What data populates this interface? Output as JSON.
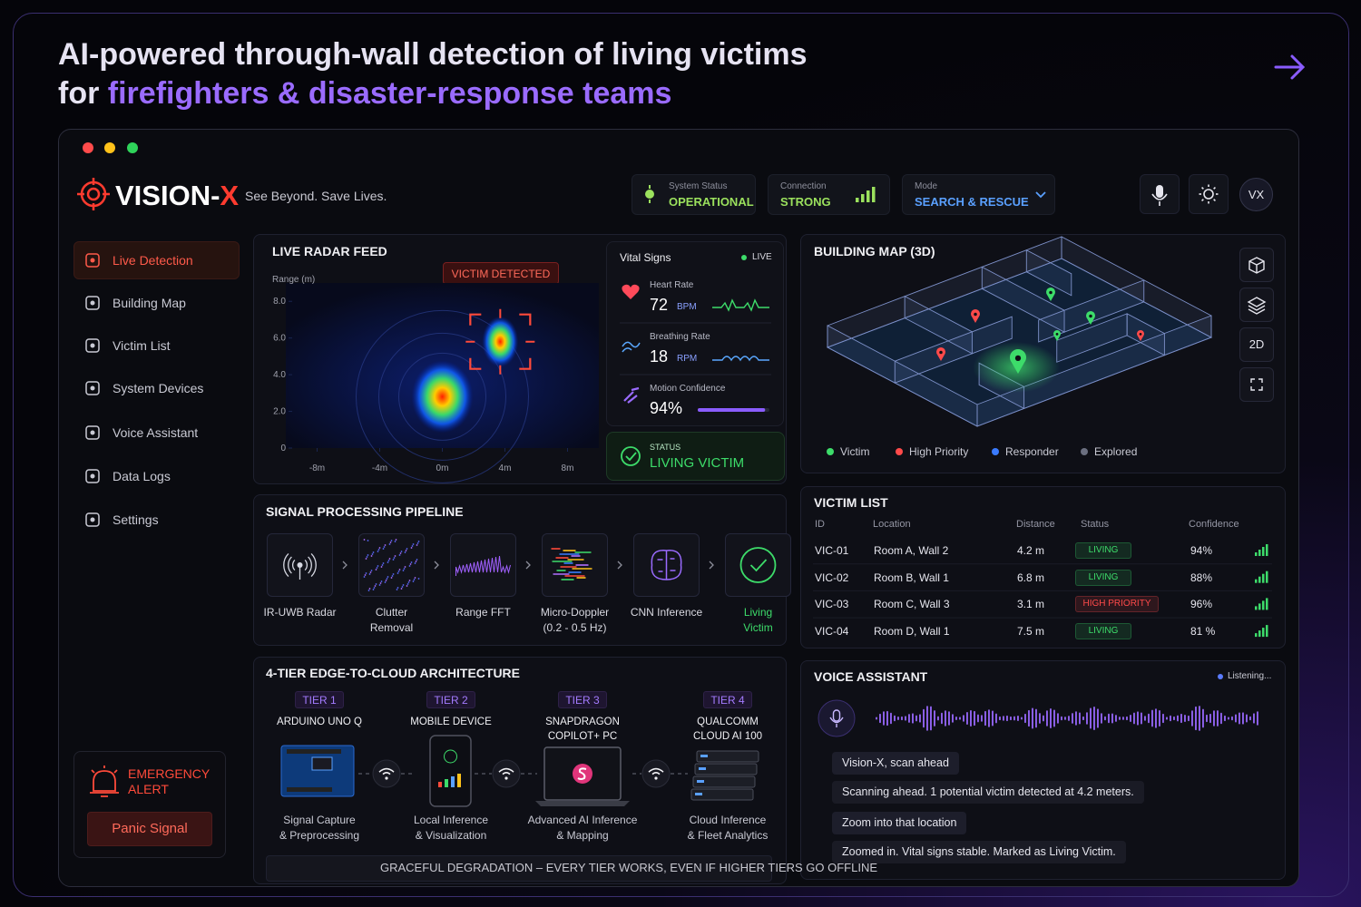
{
  "headline": {
    "line1": "AI-powered through-wall detection of living victims",
    "line2_lead": "for",
    "line2_highlight": "firefighters & disaster-response teams"
  },
  "brand": {
    "name": "VISION-",
    "name_accent": "X",
    "tagline": "See Beyond. Save Lives."
  },
  "status_bar": {
    "system_status": {
      "label": "System Status",
      "value": "OPERATIONAL"
    },
    "connection": {
      "label": "Connection",
      "value": "STRONG"
    },
    "mode": {
      "label": "Mode",
      "value": "SEARCH & RESCUE"
    },
    "avatar": "VX"
  },
  "sidebar": {
    "nav": [
      "Live Detection",
      "Building Map",
      "Victim List",
      "System Devices",
      "Voice Assistant",
      "Data Logs",
      "Settings"
    ],
    "active": 0,
    "emergency": {
      "title": "EMERGENCY ALERT",
      "button": "Panic Signal"
    }
  },
  "radar": {
    "title": "LIVE RADAR FEED",
    "y_label": "Range (m)",
    "xlim": [
      -10,
      10
    ],
    "ylim": [
      0,
      9
    ],
    "xticks": [
      {
        "value": -8,
        "label": "-8m"
      },
      {
        "value": -4,
        "label": "-4m"
      },
      {
        "value": 0,
        "label": "0m"
      },
      {
        "value": 4,
        "label": "4m"
      },
      {
        "value": 8,
        "label": "8m"
      }
    ],
    "yticks": [
      0,
      {
        "value": 2,
        "label": "2.0"
      },
      {
        "value": 4,
        "label": "4.0"
      },
      {
        "value": 6,
        "label": "6.0"
      },
      {
        "value": 8,
        "label": "8.0"
      }
    ],
    "badge": "VICTIM DETECTED",
    "detections": [
      {
        "x": 0,
        "y": 2.8
      },
      {
        "x": 3.7,
        "y": 5.8
      }
    ]
  },
  "vitals": {
    "title": "Vital Signs",
    "live": "LIVE",
    "heart_rate": {
      "label": "Heart Rate",
      "value": 72,
      "unit": "BPM"
    },
    "breathing_rate": {
      "label": "Breathing Rate",
      "value": 18,
      "unit": "RPM"
    },
    "motion_confidence": {
      "label": "Motion Confidence",
      "value": 94,
      "value_label": "94%"
    },
    "status": {
      "label": "STATUS",
      "value": "LIVING VICTIM"
    }
  },
  "building_map": {
    "title": "BUILDING MAP (3D)",
    "view_toggle": "2D",
    "legend": [
      {
        "label": "Victim",
        "color": "#3ddc6a"
      },
      {
        "label": "High Priority",
        "color": "#ff4a4a"
      },
      {
        "label": "Responder",
        "color": "#3a7bff"
      },
      {
        "label": "Explored",
        "color": "#6b6f80"
      }
    ]
  },
  "victim_list": {
    "title": "VICTIM LIST",
    "columns": [
      "ID",
      "Location",
      "Distance",
      "Status",
      "Confidence"
    ],
    "rows": [
      {
        "id": "VIC-01",
        "location": "Room A, Wall 2",
        "distance": "4.2 m",
        "status": "LIVING",
        "confidence": "94%",
        "status_color": "#3ddc6a"
      },
      {
        "id": "VIC-02",
        "location": "Room B, Wall 1",
        "distance": "6.8 m",
        "status": "LIVING",
        "confidence": "88%",
        "status_color": "#3ddc6a"
      },
      {
        "id": "VIC-03",
        "location": "Room C, Wall 3",
        "distance": "3.1 m",
        "status": "HIGH PRIORITY",
        "confidence": "96%",
        "status_color": "#ff4a4a"
      },
      {
        "id": "VIC-04",
        "location": "Room D, Wall 1",
        "distance": "7.5 m",
        "status": "LIVING",
        "confidence": "81 %",
        "status_color": "#3ddc6a"
      }
    ]
  },
  "pipeline": {
    "title": "SIGNAL PROCESSING PIPELINE",
    "steps": [
      [
        "IR-UWB Radar"
      ],
      [
        "Clutter",
        "Removal"
      ],
      [
        "Range FFT"
      ],
      [
        "Micro-Doppler",
        "(0.2 - 0.5 Hz)"
      ],
      [
        "CNN Inference"
      ],
      [
        "Living",
        "Victim"
      ]
    ],
    "final_color": "#3ddc6a"
  },
  "architecture": {
    "title": "4-TIER EDGE-TO-CLOUD ARCHITECTURE",
    "tiers": [
      {
        "tier": "TIER 1",
        "name": [
          "ARDUINO UNO Q"
        ],
        "caption": [
          "Signal Capture",
          "& Preprocessing"
        ]
      },
      {
        "tier": "TIER 2",
        "name": [
          "MOBILE DEVICE"
        ],
        "caption": [
          "Local Inference",
          "& Visualization"
        ]
      },
      {
        "tier": "TIER 3",
        "name": [
          "SNAPDRAGON",
          "COPILOT+ PC"
        ],
        "caption": [
          "Advanced AI Inference",
          "& Mapping"
        ]
      },
      {
        "tier": "TIER 4",
        "name": [
          "QUALCOMM",
          "CLOUD AI 100"
        ],
        "caption": [
          "Cloud Inference",
          "& Fleet Analytics"
        ]
      }
    ],
    "footer": "GRACEFUL DEGRADATION – EVERY TIER WORKS, EVEN IF HIGHER TIERS GO OFFLINE"
  },
  "voice": {
    "title": "VOICE ASSISTANT",
    "state": "Listening...",
    "messages": [
      "Vision-X, scan ahead",
      "Scanning ahead. 1 potential victim detected at 4.2 meters.",
      "Zoom into that location",
      "Zoomed in. Vital signs stable. Marked as Living Victim."
    ]
  }
}
